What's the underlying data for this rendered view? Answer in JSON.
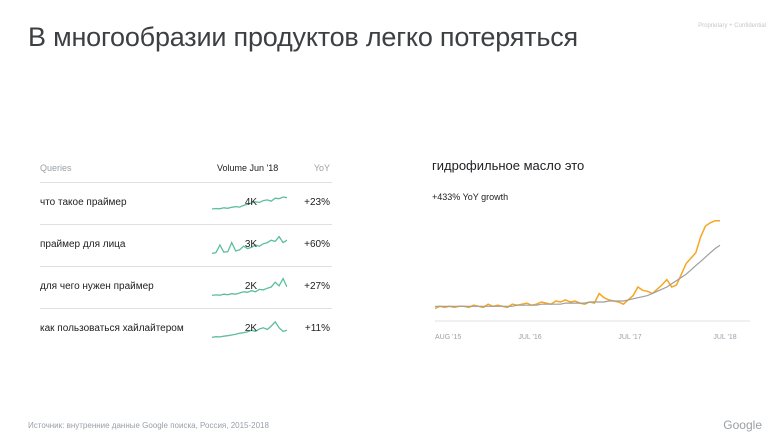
{
  "slide": {
    "title": "В многообразии продуктов легко потеряться",
    "proprietary": "Proprietary + Confidential",
    "source": "Источник: внутренние данные Google поиска, Россия, 2015-2018",
    "logo": "Google"
  },
  "table": {
    "headers": {
      "queries": "Queries",
      "volume": "Volume Jun '18",
      "yoy": "YoY"
    },
    "rows": [
      {
        "query": "что такое праймер",
        "volume": "4K",
        "yoy": "+23%",
        "spark": [
          0.25,
          0.27,
          0.26,
          0.3,
          0.28,
          0.32,
          0.35,
          0.33,
          0.4,
          0.45,
          0.5,
          0.55,
          0.52,
          0.6,
          0.63,
          0.58,
          0.7,
          0.68,
          0.75,
          0.72
        ]
      },
      {
        "query": "праймер для лица",
        "volume": "3K",
        "yoy": "+60%",
        "spark": [
          0.15,
          0.18,
          0.5,
          0.2,
          0.22,
          0.6,
          0.25,
          0.3,
          0.45,
          0.35,
          0.4,
          0.5,
          0.45,
          0.55,
          0.6,
          0.7,
          0.65,
          0.85,
          0.6,
          0.7
        ]
      },
      {
        "query": "для чего нужен праймер",
        "volume": "2K",
        "yoy": "+27%",
        "spark": [
          0.15,
          0.17,
          0.16,
          0.2,
          0.18,
          0.22,
          0.2,
          0.25,
          0.3,
          0.28,
          0.35,
          0.3,
          0.4,
          0.38,
          0.45,
          0.5,
          0.7,
          0.55,
          0.85,
          0.5
        ]
      },
      {
        "query": "как пользоваться хайлайтером",
        "volume": "2K",
        "yoy": "+11%",
        "spark": [
          0.15,
          0.18,
          0.17,
          0.2,
          0.22,
          0.25,
          0.28,
          0.32,
          0.35,
          0.38,
          0.45,
          0.4,
          0.5,
          0.55,
          0.48,
          0.62,
          0.8,
          0.55,
          0.4,
          0.45
        ]
      }
    ]
  },
  "chart_data": {
    "type": "line",
    "title": "гидрофильное масло это",
    "subtitle": "+433% YoY growth",
    "x_ticks": [
      "AUG '15",
      "JUL '16",
      "JUL '17",
      "JUL '18"
    ],
    "series": [
      {
        "color": "#f5a623",
        "values": [
          8,
          10,
          9,
          10,
          9,
          10,
          10,
          9,
          11,
          10,
          9,
          12,
          10,
          11,
          10,
          9,
          12,
          11,
          12,
          13,
          11,
          12,
          14,
          13,
          12,
          15,
          14,
          16,
          14,
          15,
          13,
          12,
          14,
          13,
          22,
          18,
          16,
          15,
          14,
          12,
          16,
          20,
          28,
          25,
          24,
          22,
          26,
          30,
          35,
          28,
          30,
          40,
          50,
          55,
          60,
          75,
          85,
          88,
          90,
          90
        ]
      },
      {
        "color": "#9e9e9e",
        "values": [
          10,
          10,
          10,
          10,
          10,
          10,
          10,
          10,
          10,
          10,
          10,
          10,
          10,
          10,
          10,
          10,
          10,
          11,
          11,
          11,
          11,
          11,
          12,
          12,
          12,
          12,
          12,
          13,
          13,
          13,
          13,
          13,
          14,
          14,
          14,
          14,
          15,
          15,
          15,
          15,
          16,
          17,
          18,
          19,
          20,
          22,
          24,
          26,
          28,
          31,
          34,
          37,
          40,
          44,
          48,
          52,
          56,
          60,
          64,
          67
        ]
      }
    ],
    "ylim": [
      0,
      100
    ],
    "colors": {
      "accent": "#f5a623",
      "neutral": "#9e9e9e",
      "sparkline": "#5cbf9b"
    }
  }
}
